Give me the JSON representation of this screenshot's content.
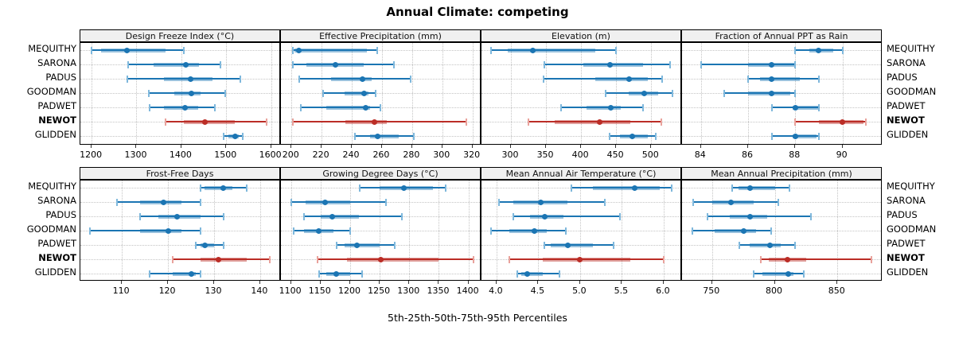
{
  "title": "Annual Climate: competing",
  "caption": "5th-25th-50th-75th-95th Percentiles",
  "colors": {
    "blue_main": "#1b75b3",
    "blue_tint": "#7fb8dc",
    "red_main": "#bb2d26",
    "red_tint": "#e9a29c",
    "strip_bg": "#f0f0f0",
    "grid": "#c4c4c4",
    "border": "#000000"
  },
  "chart_data": {
    "type": "percentile-dotplot-trellis",
    "layout_hint": "2 rows x 4 cols of panels; station labels on left and right of each panel row; dotted grid; NEWOT highlighted red/bold",
    "percentile_labels": [
      "5th",
      "25th",
      "50th",
      "75th",
      "95th"
    ],
    "stations": [
      {
        "name": "MEQUITHY",
        "highlight": false
      },
      {
        "name": "SARONA",
        "highlight": false
      },
      {
        "name": "PADUS",
        "highlight": false
      },
      {
        "name": "GOODMAN",
        "highlight": false
      },
      {
        "name": "PADWET",
        "highlight": false
      },
      {
        "name": "NEWOT",
        "highlight": true
      },
      {
        "name": "GLIDDEN",
        "highlight": false
      }
    ],
    "panels": [
      {
        "title": "Design Freeze Index (°C)",
        "xlim": [
          1175,
          1622
        ],
        "ticks": [
          1200,
          1300,
          1400,
          1500,
          1600
        ],
        "tick_labels": [
          "1200",
          "1300",
          "1400",
          "1500",
          "1600"
        ],
        "values": {
          "MEQUITHY": [
            1200,
            1222,
            1278,
            1365,
            1405
          ],
          "SARONA": [
            1282,
            1338,
            1410,
            1440,
            1488
          ],
          "PADUS": [
            1280,
            1362,
            1420,
            1470,
            1532
          ],
          "GOODMAN": [
            1327,
            1385,
            1422,
            1443,
            1497
          ],
          "PADWET": [
            1330,
            1362,
            1408,
            1437,
            1475
          ],
          "NEWOT": [
            1365,
            1405,
            1452,
            1520,
            1590
          ],
          "GLIDDEN": [
            1495,
            1505,
            1520,
            1528,
            1537
          ]
        }
      },
      {
        "title": "Effective Precipitation (mm)",
        "xlim": [
          193,
          326
        ],
        "ticks": [
          200,
          220,
          240,
          260,
          280,
          300,
          320
        ],
        "tick_labels": [
          "200",
          "220",
          "240",
          "260",
          "280",
          "300",
          "320"
        ],
        "values": {
          "MEQUITHY": [
            201,
            202,
            205,
            250,
            257
          ],
          "SARONA": [
            201,
            210,
            229,
            248,
            268
          ],
          "PADUS": [
            205,
            226,
            247,
            253,
            279
          ],
          "GOODMAN": [
            221,
            235,
            248,
            251,
            256
          ],
          "PADWET": [
            206,
            223,
            249,
            252,
            259
          ],
          "NEWOT": [
            201,
            236,
            255,
            263,
            316
          ],
          "GLIDDEN": [
            242,
            252,
            257,
            271,
            281
          ]
        }
      },
      {
        "title": "Elevation (m)",
        "xlim": [
          258,
          544
        ],
        "ticks": [
          300,
          350,
          400,
          450,
          500
        ],
        "tick_labels": [
          "300",
          "350",
          "400",
          "450",
          "500"
        ],
        "values": {
          "MEQUITHY": [
            272,
            295,
            331,
            420,
            450
          ],
          "SARONA": [
            348,
            403,
            441,
            488,
            527
          ],
          "PADUS": [
            347,
            420,
            469,
            495,
            516
          ],
          "GOODMAN": [
            435,
            468,
            490,
            510,
            530
          ],
          "PADWET": [
            372,
            408,
            442,
            457,
            488
          ],
          "NEWOT": [
            325,
            362,
            427,
            470,
            515
          ],
          "GLIDDEN": [
            441,
            455,
            473,
            495,
            507
          ]
        }
      },
      {
        "title": "Fraction of Annual PPT as Rain",
        "xlim": [
          83.2,
          91.7
        ],
        "ticks": [
          84,
          86,
          88,
          90
        ],
        "tick_labels": [
          "84",
          "86",
          "88",
          "90"
        ],
        "values": {
          "MEQUITHY": [
            88,
            88.6,
            89,
            89.6,
            90
          ],
          "SARONA": [
            84,
            86,
            87,
            88,
            88
          ],
          "PADUS": [
            86,
            86.5,
            87,
            88.2,
            89
          ],
          "GOODMAN": [
            85,
            86,
            87,
            87.8,
            88
          ],
          "PADWET": [
            87,
            87.9,
            88,
            89,
            89
          ],
          "NEWOT": [
            88,
            89,
            90,
            90.9,
            91
          ],
          "GLIDDEN": [
            87,
            87.9,
            88,
            88.9,
            89
          ]
        }
      },
      {
        "title": "Frost-Free Days",
        "xlim": [
          101,
          144.5
        ],
        "ticks": [
          110,
          120,
          130,
          140
        ],
        "tick_labels": [
          "110",
          "120",
          "130",
          "140"
        ],
        "values": {
          "MEQUITHY": [
            127,
            128,
            132,
            134,
            137
          ],
          "SARONA": [
            109,
            114,
            119,
            123,
            127
          ],
          "PADUS": [
            114,
            118,
            122,
            127,
            132
          ],
          "GOODMAN": [
            103,
            114,
            120,
            123,
            127
          ],
          "PADWET": [
            126,
            127,
            128,
            130,
            132
          ],
          "NEWOT": [
            121,
            127,
            131,
            137,
            142
          ],
          "GLIDDEN": [
            116,
            121,
            125,
            126,
            127
          ]
        }
      },
      {
        "title": "Growing Degree Days (°C)",
        "xlim": [
          1083,
          1422
        ],
        "ticks": [
          1100,
          1150,
          1200,
          1250,
          1300,
          1350,
          1400
        ],
        "tick_labels": [
          "1100",
          "1150",
          "1200",
          "1250",
          "1300",
          "1350",
          "1400"
        ],
        "values": {
          "MEQUITHY": [
            1216,
            1250,
            1291,
            1340,
            1361
          ],
          "SARONA": [
            1100,
            1125,
            1157,
            1200,
            1260
          ],
          "PADUS": [
            1122,
            1150,
            1170,
            1215,
            1287
          ],
          "GOODMAN": [
            1105,
            1122,
            1147,
            1172,
            1200
          ],
          "PADWET": [
            1177,
            1190,
            1212,
            1250,
            1275
          ],
          "NEWOT": [
            1145,
            1195,
            1252,
            1350,
            1408
          ],
          "GLIDDEN": [
            1148,
            1160,
            1176,
            1200,
            1220
          ]
        }
      },
      {
        "title": "Mean Annual Air Temperature (°C)",
        "xlim": [
          3.82,
          6.22
        ],
        "ticks": [
          4.0,
          4.5,
          5.0,
          5.5,
          6.0
        ],
        "tick_labels": [
          "4.0",
          "4.5",
          "5.0",
          "5.5",
          "6.0"
        ],
        "values": {
          "MEQUITHY": [
            4.9,
            5.15,
            5.65,
            5.95,
            6.1
          ],
          "SARONA": [
            4.03,
            4.2,
            4.53,
            4.85,
            5.3
          ],
          "PADUS": [
            4.2,
            4.4,
            4.58,
            4.8,
            5.48
          ],
          "GOODMAN": [
            3.93,
            4.15,
            4.45,
            4.6,
            4.83
          ],
          "PADWET": [
            4.57,
            4.65,
            4.85,
            5.15,
            5.4
          ],
          "NEWOT": [
            4.15,
            4.55,
            5.0,
            5.6,
            6.0
          ],
          "GLIDDEN": [
            4.25,
            4.3,
            4.37,
            4.55,
            4.75
          ]
        }
      },
      {
        "title": "Mean Annual Precipitation (mm)",
        "xlim": [
          726,
          886
        ],
        "ticks": [
          750,
          800,
          850
        ],
        "tick_labels": [
          "750",
          "800",
          "850"
        ],
        "values": {
          "MEQUITHY": [
            766,
            771,
            780,
            800,
            812
          ],
          "SARONA": [
            735,
            750,
            765,
            783,
            803
          ],
          "PADUS": [
            746,
            764,
            780,
            794,
            829
          ],
          "GOODMAN": [
            734,
            752,
            775,
            785,
            797
          ],
          "PADWET": [
            772,
            780,
            796,
            805,
            816
          ],
          "NEWOT": [
            789,
            795,
            810,
            825,
            877
          ],
          "GLIDDEN": [
            783,
            790,
            811,
            815,
            823
          ]
        }
      }
    ]
  }
}
